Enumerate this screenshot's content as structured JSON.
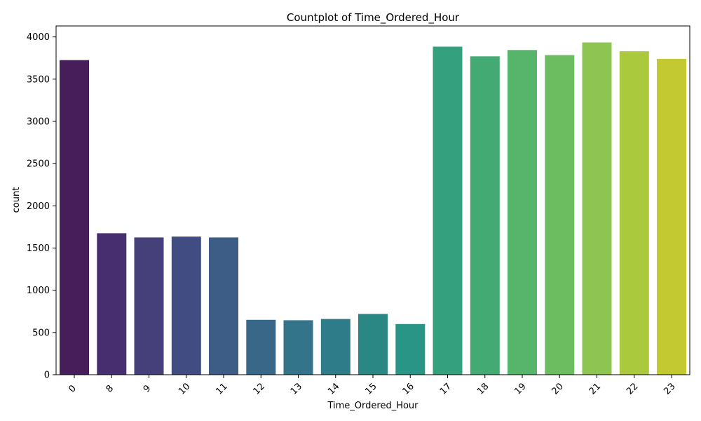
{
  "chart_data": {
    "type": "bar",
    "title": "Countplot of Time_Ordered_Hour",
    "xlabel": "Time_Ordered_Hour",
    "ylabel": "count",
    "categories": [
      "0",
      "8",
      "9",
      "10",
      "11",
      "12",
      "13",
      "14",
      "15",
      "16",
      "17",
      "18",
      "19",
      "20",
      "21",
      "22",
      "23"
    ],
    "values": [
      3725,
      1675,
      1625,
      1635,
      1625,
      650,
      645,
      660,
      720,
      600,
      3885,
      3770,
      3845,
      3785,
      3935,
      3830,
      3740
    ],
    "colors": [
      "#471d5a",
      "#472f6f",
      "#46407a",
      "#414d82",
      "#3d5d86",
      "#386787",
      "#33748a",
      "#2e7c89",
      "#2a8784",
      "#289586",
      "#35a07d",
      "#44aa73",
      "#57b46b",
      "#6cbd5f",
      "#8dc452",
      "#abc93c",
      "#c3ca31"
    ],
    "yticks": [
      0,
      500,
      1000,
      1500,
      2000,
      2500,
      3000,
      3500,
      4000
    ],
    "ylim": [
      0,
      4130
    ],
    "grid": false,
    "legend": "none"
  }
}
